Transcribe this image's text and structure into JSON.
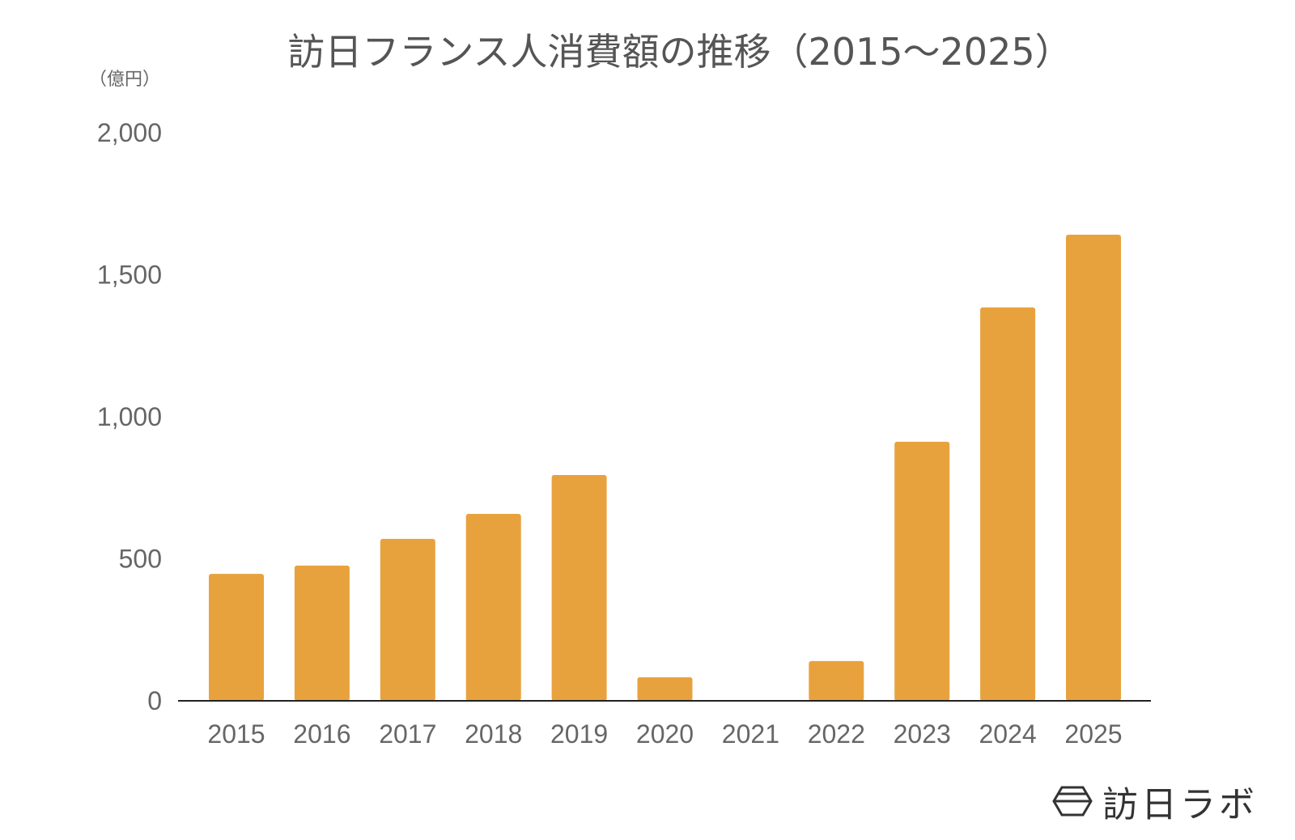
{
  "chart_data": {
    "type": "bar",
    "title": "訪日フランス人消費額の推移（2015～2025）",
    "ylabel": "（億円）",
    "xlabel": "",
    "categories": [
      "2015",
      "2016",
      "2017",
      "2018",
      "2019",
      "2020",
      "2021",
      "2022",
      "2023",
      "2024",
      "2025"
    ],
    "values": [
      447,
      476,
      570,
      658,
      795,
      83,
      0,
      140,
      912,
      1385,
      1641
    ],
    "ylim": [
      0,
      2000
    ],
    "yticks": [
      0,
      500,
      1000,
      1500,
      2000
    ],
    "ytick_labels": [
      "0",
      "500",
      "1,000",
      "1,500",
      "2,000"
    ],
    "grid": false,
    "bar_color": "#E8A23D"
  },
  "logo": {
    "text": "訪日ラボ"
  }
}
